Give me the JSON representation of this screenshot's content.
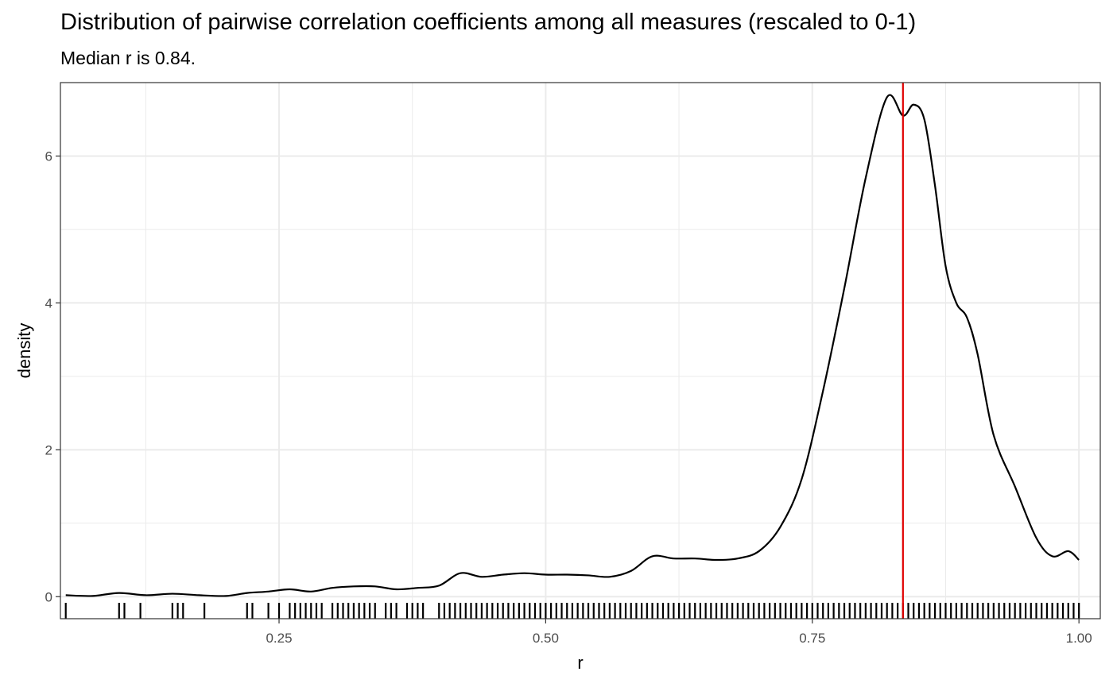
{
  "chart_data": {
    "type": "line",
    "title": "Distribution of pairwise correlation coefficients among all measures (rescaled to 0-1)",
    "subtitle": "Median r is 0.84.",
    "xlabel": "r",
    "ylabel": "density",
    "xlim": [
      0.045,
      1.02
    ],
    "ylim": [
      -0.3,
      7.0
    ],
    "x_ticks": [
      0.25,
      0.5,
      0.75,
      1.0
    ],
    "x_tick_labels": [
      "0.25",
      "0.50",
      "0.75",
      "1.00"
    ],
    "y_ticks": [
      0,
      2,
      4,
      6
    ],
    "y_tick_labels": [
      "0",
      "2",
      "4",
      "6"
    ],
    "grid": true,
    "median": 0.835,
    "colors": {
      "density_line": "#000000",
      "median_line": "#e00000",
      "rug": "#000000",
      "grid": "#ebebeb",
      "panel_border": "#333333"
    },
    "series": [
      {
        "x": [
          0.05,
          0.075,
          0.1,
          0.125,
          0.15,
          0.175,
          0.2,
          0.22,
          0.24,
          0.26,
          0.28,
          0.3,
          0.32,
          0.34,
          0.36,
          0.38,
          0.4,
          0.42,
          0.44,
          0.46,
          0.48,
          0.5,
          0.52,
          0.54,
          0.56,
          0.58,
          0.6,
          0.62,
          0.64,
          0.66,
          0.68,
          0.7,
          0.72,
          0.74,
          0.76,
          0.78,
          0.8,
          0.82,
          0.835,
          0.845,
          0.855,
          0.865,
          0.875,
          0.885,
          0.895,
          0.905,
          0.92,
          0.94,
          0.96,
          0.975,
          0.99,
          1.0
        ],
        "y": [
          0.02,
          0.01,
          0.05,
          0.02,
          0.04,
          0.02,
          0.01,
          0.05,
          0.07,
          0.1,
          0.07,
          0.12,
          0.14,
          0.14,
          0.1,
          0.12,
          0.15,
          0.32,
          0.27,
          0.3,
          0.32,
          0.3,
          0.3,
          0.29,
          0.27,
          0.35,
          0.55,
          0.52,
          0.52,
          0.5,
          0.52,
          0.62,
          0.95,
          1.6,
          2.8,
          4.2,
          5.7,
          6.8,
          6.55,
          6.7,
          6.5,
          5.6,
          4.5,
          4.0,
          3.8,
          3.3,
          2.2,
          1.5,
          0.8,
          0.55,
          0.62,
          0.5
        ]
      }
    ],
    "rug": [
      0.05,
      0.1,
      0.105,
      0.12,
      0.15,
      0.155,
      0.16,
      0.18,
      0.22,
      0.225,
      0.24,
      0.25,
      0.26,
      0.265,
      0.27,
      0.275,
      0.28,
      0.285,
      0.29,
      0.3,
      0.305,
      0.31,
      0.315,
      0.32,
      0.325,
      0.33,
      0.335,
      0.34,
      0.35,
      0.355,
      0.36,
      0.37,
      0.375,
      0.38,
      0.385,
      0.4,
      0.405,
      0.41,
      0.415,
      0.42,
      0.425,
      0.43,
      0.435,
      0.44,
      0.445,
      0.45,
      0.455,
      0.46,
      0.465,
      0.47,
      0.475,
      0.48,
      0.485,
      0.49,
      0.495,
      0.5,
      0.505,
      0.51,
      0.515,
      0.52,
      0.525,
      0.53,
      0.535,
      0.54,
      0.545,
      0.55,
      0.555,
      0.56,
      0.565,
      0.57,
      0.575,
      0.58,
      0.585,
      0.59,
      0.595,
      0.6,
      0.605,
      0.61,
      0.615,
      0.62,
      0.625,
      0.63,
      0.635,
      0.64,
      0.645,
      0.65,
      0.655,
      0.66,
      0.665,
      0.67,
      0.675,
      0.68,
      0.685,
      0.69,
      0.695,
      0.7,
      0.705,
      0.71,
      0.715,
      0.72,
      0.725,
      0.73,
      0.735,
      0.74,
      0.745,
      0.75,
      0.755,
      0.76,
      0.765,
      0.77,
      0.775,
      0.78,
      0.785,
      0.79,
      0.795,
      0.8,
      0.805,
      0.81,
      0.815,
      0.82,
      0.825,
      0.83,
      0.835,
      0.84,
      0.845,
      0.85,
      0.855,
      0.86,
      0.865,
      0.87,
      0.875,
      0.88,
      0.885,
      0.89,
      0.895,
      0.9,
      0.905,
      0.91,
      0.915,
      0.92,
      0.925,
      0.93,
      0.935,
      0.94,
      0.945,
      0.95,
      0.955,
      0.96,
      0.965,
      0.97,
      0.975,
      0.98,
      0.985,
      0.99,
      0.995,
      1.0
    ]
  }
}
